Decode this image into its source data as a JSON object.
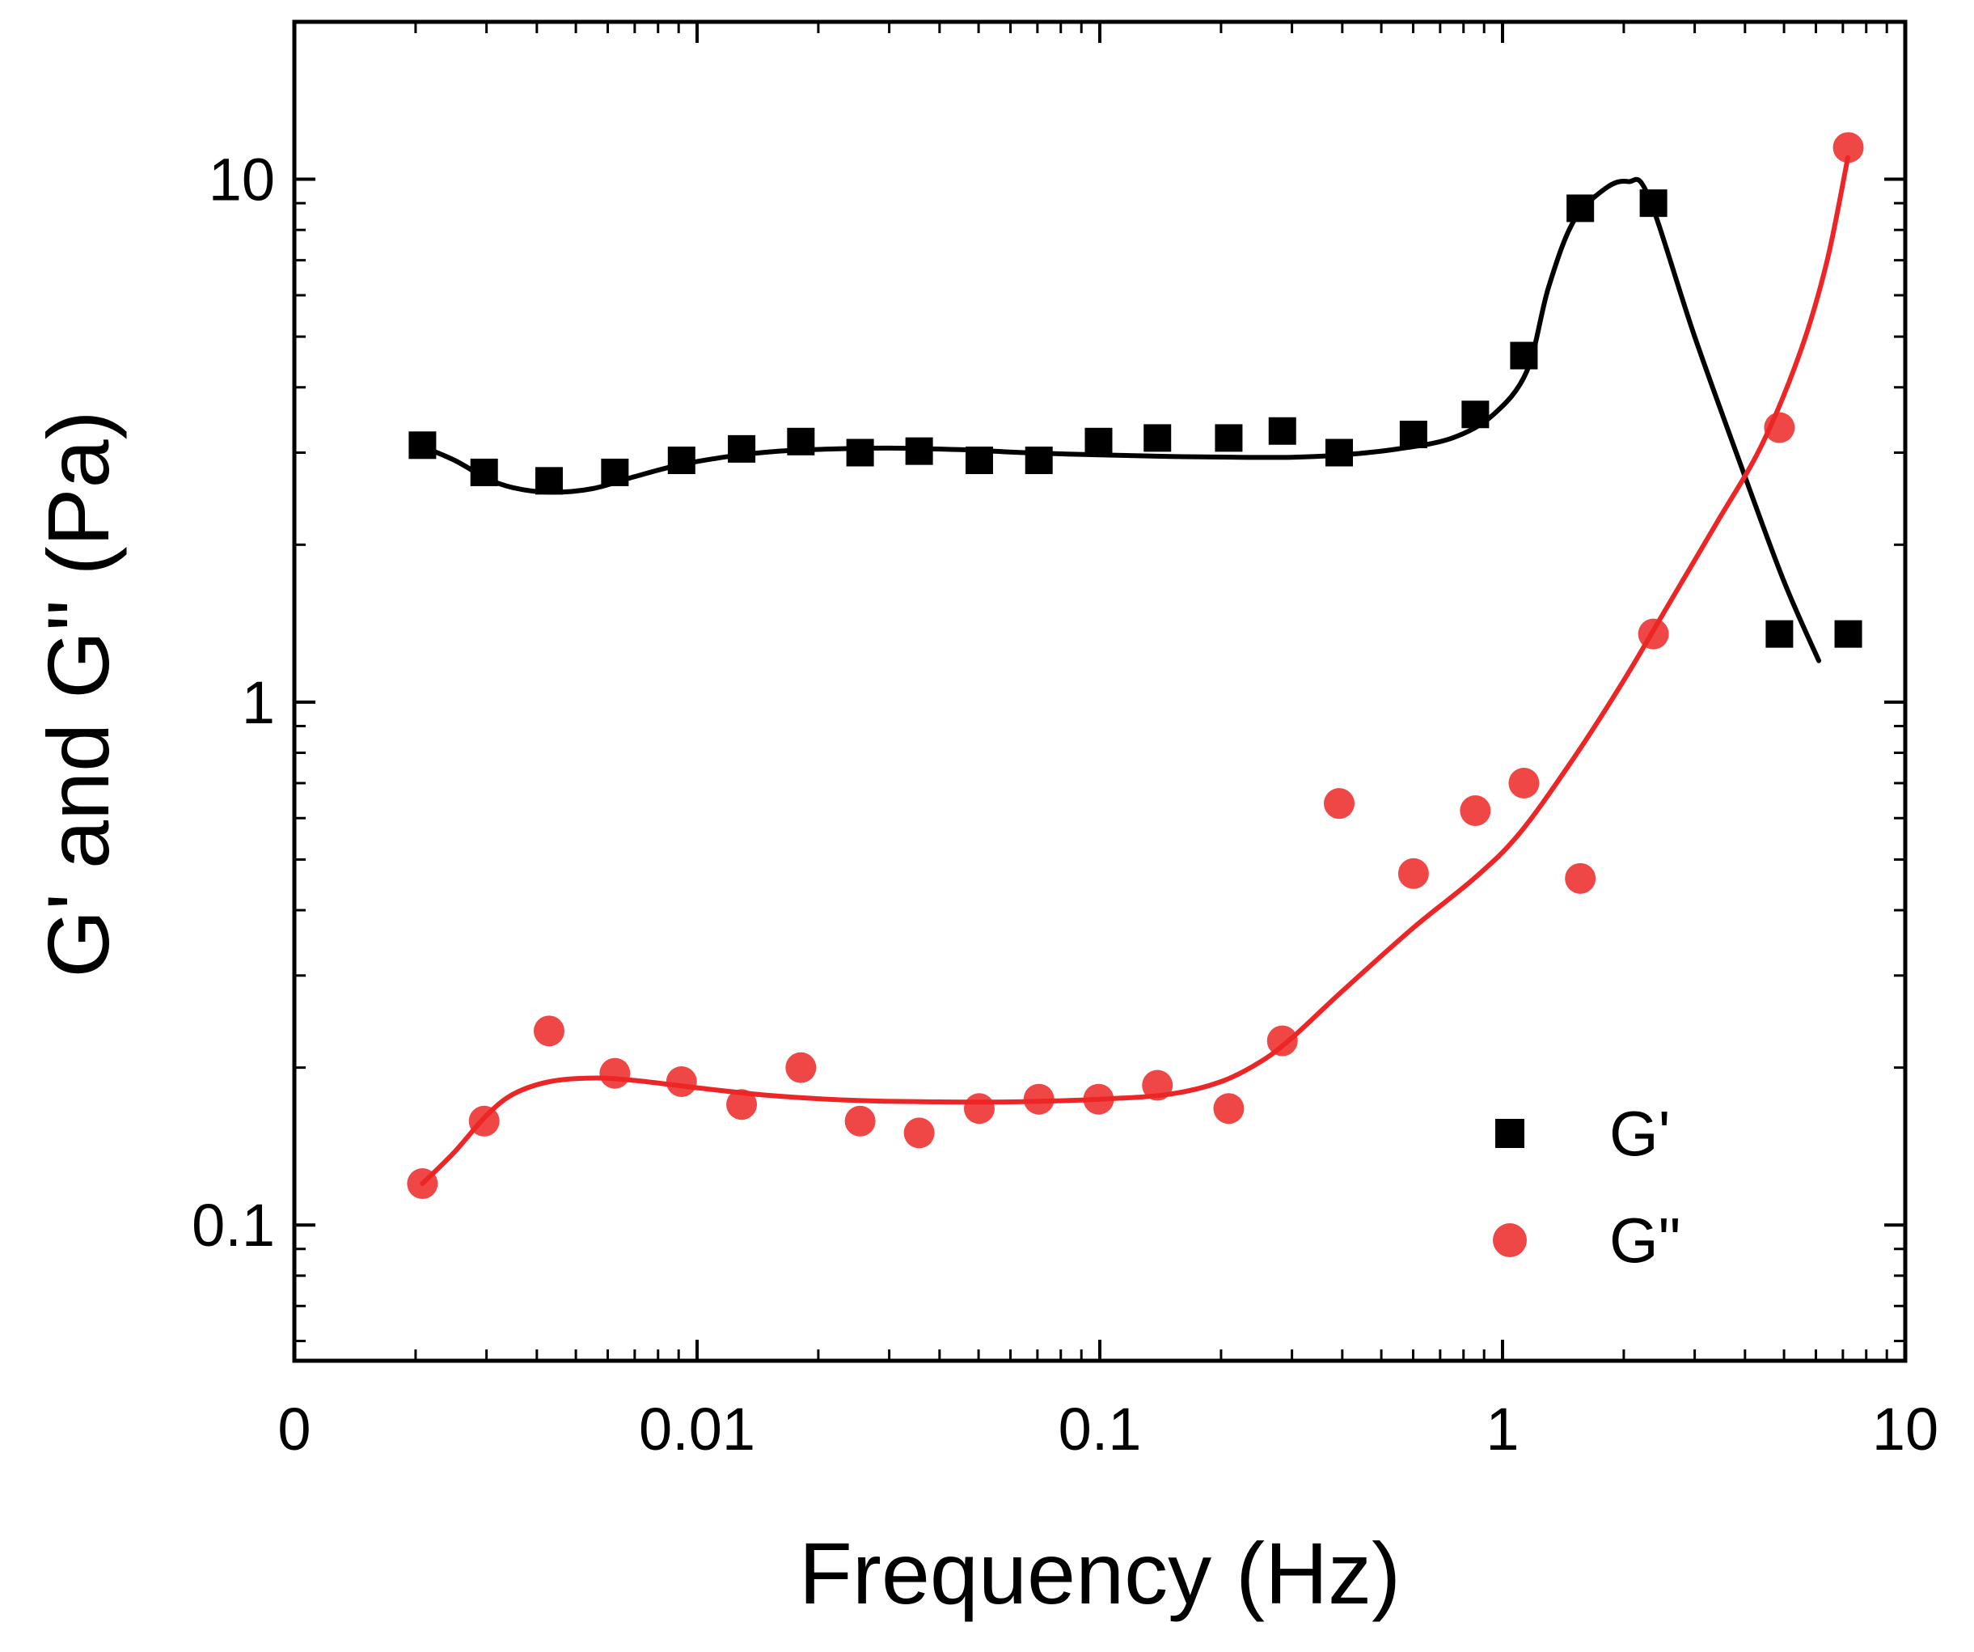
{
  "chart_data": {
    "type": "scatter",
    "title": "",
    "xlabel": "Frequency (Hz)",
    "ylabel": "G' and G\" (Pa)",
    "xscale": "log",
    "yscale": "log",
    "xlim_decades": [
      -3,
      1
    ],
    "ylim": [
      0.055,
      20
    ],
    "xtick_labels": [
      {
        "value": 0.001,
        "label": "0"
      },
      {
        "value": 0.01,
        "label": "0.01"
      },
      {
        "value": 0.1,
        "label": "0.1"
      },
      {
        "value": 1,
        "label": "1"
      },
      {
        "value": 10,
        "label": "10"
      }
    ],
    "ytick_labels": [
      {
        "value": 0.1,
        "label": "0.1"
      },
      {
        "value": 1,
        "label": "1"
      },
      {
        "value": 10,
        "label": "10"
      }
    ],
    "grid": false,
    "legend_position": "bottom-right",
    "series": [
      {
        "name": "G'",
        "marker": "square",
        "color": "#000000",
        "points": [
          [
            0.00208,
            3.1
          ],
          [
            0.00296,
            2.75
          ],
          [
            0.00429,
            2.65
          ],
          [
            0.00625,
            2.75
          ],
          [
            0.00915,
            2.9
          ],
          [
            0.0129,
            3.05
          ],
          [
            0.0181,
            3.15
          ],
          [
            0.0254,
            3.0
          ],
          [
            0.0356,
            3.02
          ],
          [
            0.0502,
            2.9
          ],
          [
            0.0706,
            2.9
          ],
          [
            0.0993,
            3.15
          ],
          [
            0.139,
            3.2
          ],
          [
            0.209,
            3.2
          ],
          [
            0.284,
            3.3
          ],
          [
            0.393,
            3.0
          ],
          [
            0.601,
            3.25
          ],
          [
            0.856,
            3.55
          ],
          [
            1.13,
            4.6
          ],
          [
            1.56,
            8.8
          ],
          [
            2.37,
            9.0
          ],
          [
            4.87,
            1.35
          ],
          [
            7.22,
            1.35
          ]
        ],
        "fit": [
          [
            0.00208,
            3.08
          ],
          [
            0.0025,
            2.9
          ],
          [
            0.003,
            2.68
          ],
          [
            0.0035,
            2.57
          ],
          [
            0.0043,
            2.52
          ],
          [
            0.0055,
            2.56
          ],
          [
            0.007,
            2.7
          ],
          [
            0.009,
            2.84
          ],
          [
            0.012,
            2.95
          ],
          [
            0.016,
            3.02
          ],
          [
            0.022,
            3.05
          ],
          [
            0.03,
            3.06
          ],
          [
            0.045,
            3.04
          ],
          [
            0.065,
            3.0
          ],
          [
            0.1,
            2.97
          ],
          [
            0.15,
            2.95
          ],
          [
            0.22,
            2.94
          ],
          [
            0.3,
            2.94
          ],
          [
            0.4,
            2.97
          ],
          [
            0.55,
            3.05
          ],
          [
            0.75,
            3.2
          ],
          [
            0.95,
            3.55
          ],
          [
            1.15,
            4.3
          ],
          [
            1.3,
            6.2
          ],
          [
            1.5,
            8.3
          ],
          [
            1.8,
            9.6
          ],
          [
            2.05,
            9.9
          ],
          [
            2.3,
            9.3
          ],
          [
            3.0,
            5.0
          ],
          [
            4.0,
            2.7
          ],
          [
            5.0,
            1.7
          ],
          [
            6.1,
            1.2
          ]
        ]
      },
      {
        "name": "G\"",
        "marker": "circle",
        "color": "#ec2626",
        "points": [
          [
            0.00208,
            0.12
          ],
          [
            0.00296,
            0.158
          ],
          [
            0.00429,
            0.235
          ],
          [
            0.00625,
            0.195
          ],
          [
            0.00915,
            0.188
          ],
          [
            0.0129,
            0.17
          ],
          [
            0.0181,
            0.2
          ],
          [
            0.0254,
            0.158
          ],
          [
            0.0356,
            0.15
          ],
          [
            0.0502,
            0.167
          ],
          [
            0.0706,
            0.174
          ],
          [
            0.0993,
            0.174
          ],
          [
            0.139,
            0.185
          ],
          [
            0.209,
            0.167
          ],
          [
            0.284,
            0.225
          ],
          [
            0.393,
            0.64
          ],
          [
            0.601,
            0.47
          ],
          [
            0.856,
            0.62
          ],
          [
            1.13,
            0.7
          ],
          [
            1.56,
            0.46
          ],
          [
            2.37,
            1.35
          ],
          [
            4.87,
            3.35
          ],
          [
            7.22,
            11.5
          ]
        ],
        "fit": [
          [
            0.00208,
            0.12
          ],
          [
            0.0025,
            0.138
          ],
          [
            0.003,
            0.162
          ],
          [
            0.0035,
            0.178
          ],
          [
            0.0043,
            0.188
          ],
          [
            0.0055,
            0.191
          ],
          [
            0.007,
            0.189
          ],
          [
            0.01,
            0.183
          ],
          [
            0.015,
            0.177
          ],
          [
            0.025,
            0.173
          ],
          [
            0.04,
            0.172
          ],
          [
            0.06,
            0.172
          ],
          [
            0.1,
            0.174
          ],
          [
            0.15,
            0.178
          ],
          [
            0.2,
            0.188
          ],
          [
            0.25,
            0.205
          ],
          [
            0.3,
            0.228
          ],
          [
            0.4,
            0.28
          ],
          [
            0.6,
            0.37
          ],
          [
            0.85,
            0.46
          ],
          [
            1.1,
            0.56
          ],
          [
            1.5,
            0.78
          ],
          [
            2.0,
            1.1
          ],
          [
            2.6,
            1.55
          ],
          [
            3.4,
            2.2
          ],
          [
            4.4,
            3.1
          ],
          [
            5.5,
            4.7
          ],
          [
            6.4,
            7.0
          ],
          [
            7.2,
            11.0
          ]
        ]
      }
    ]
  }
}
